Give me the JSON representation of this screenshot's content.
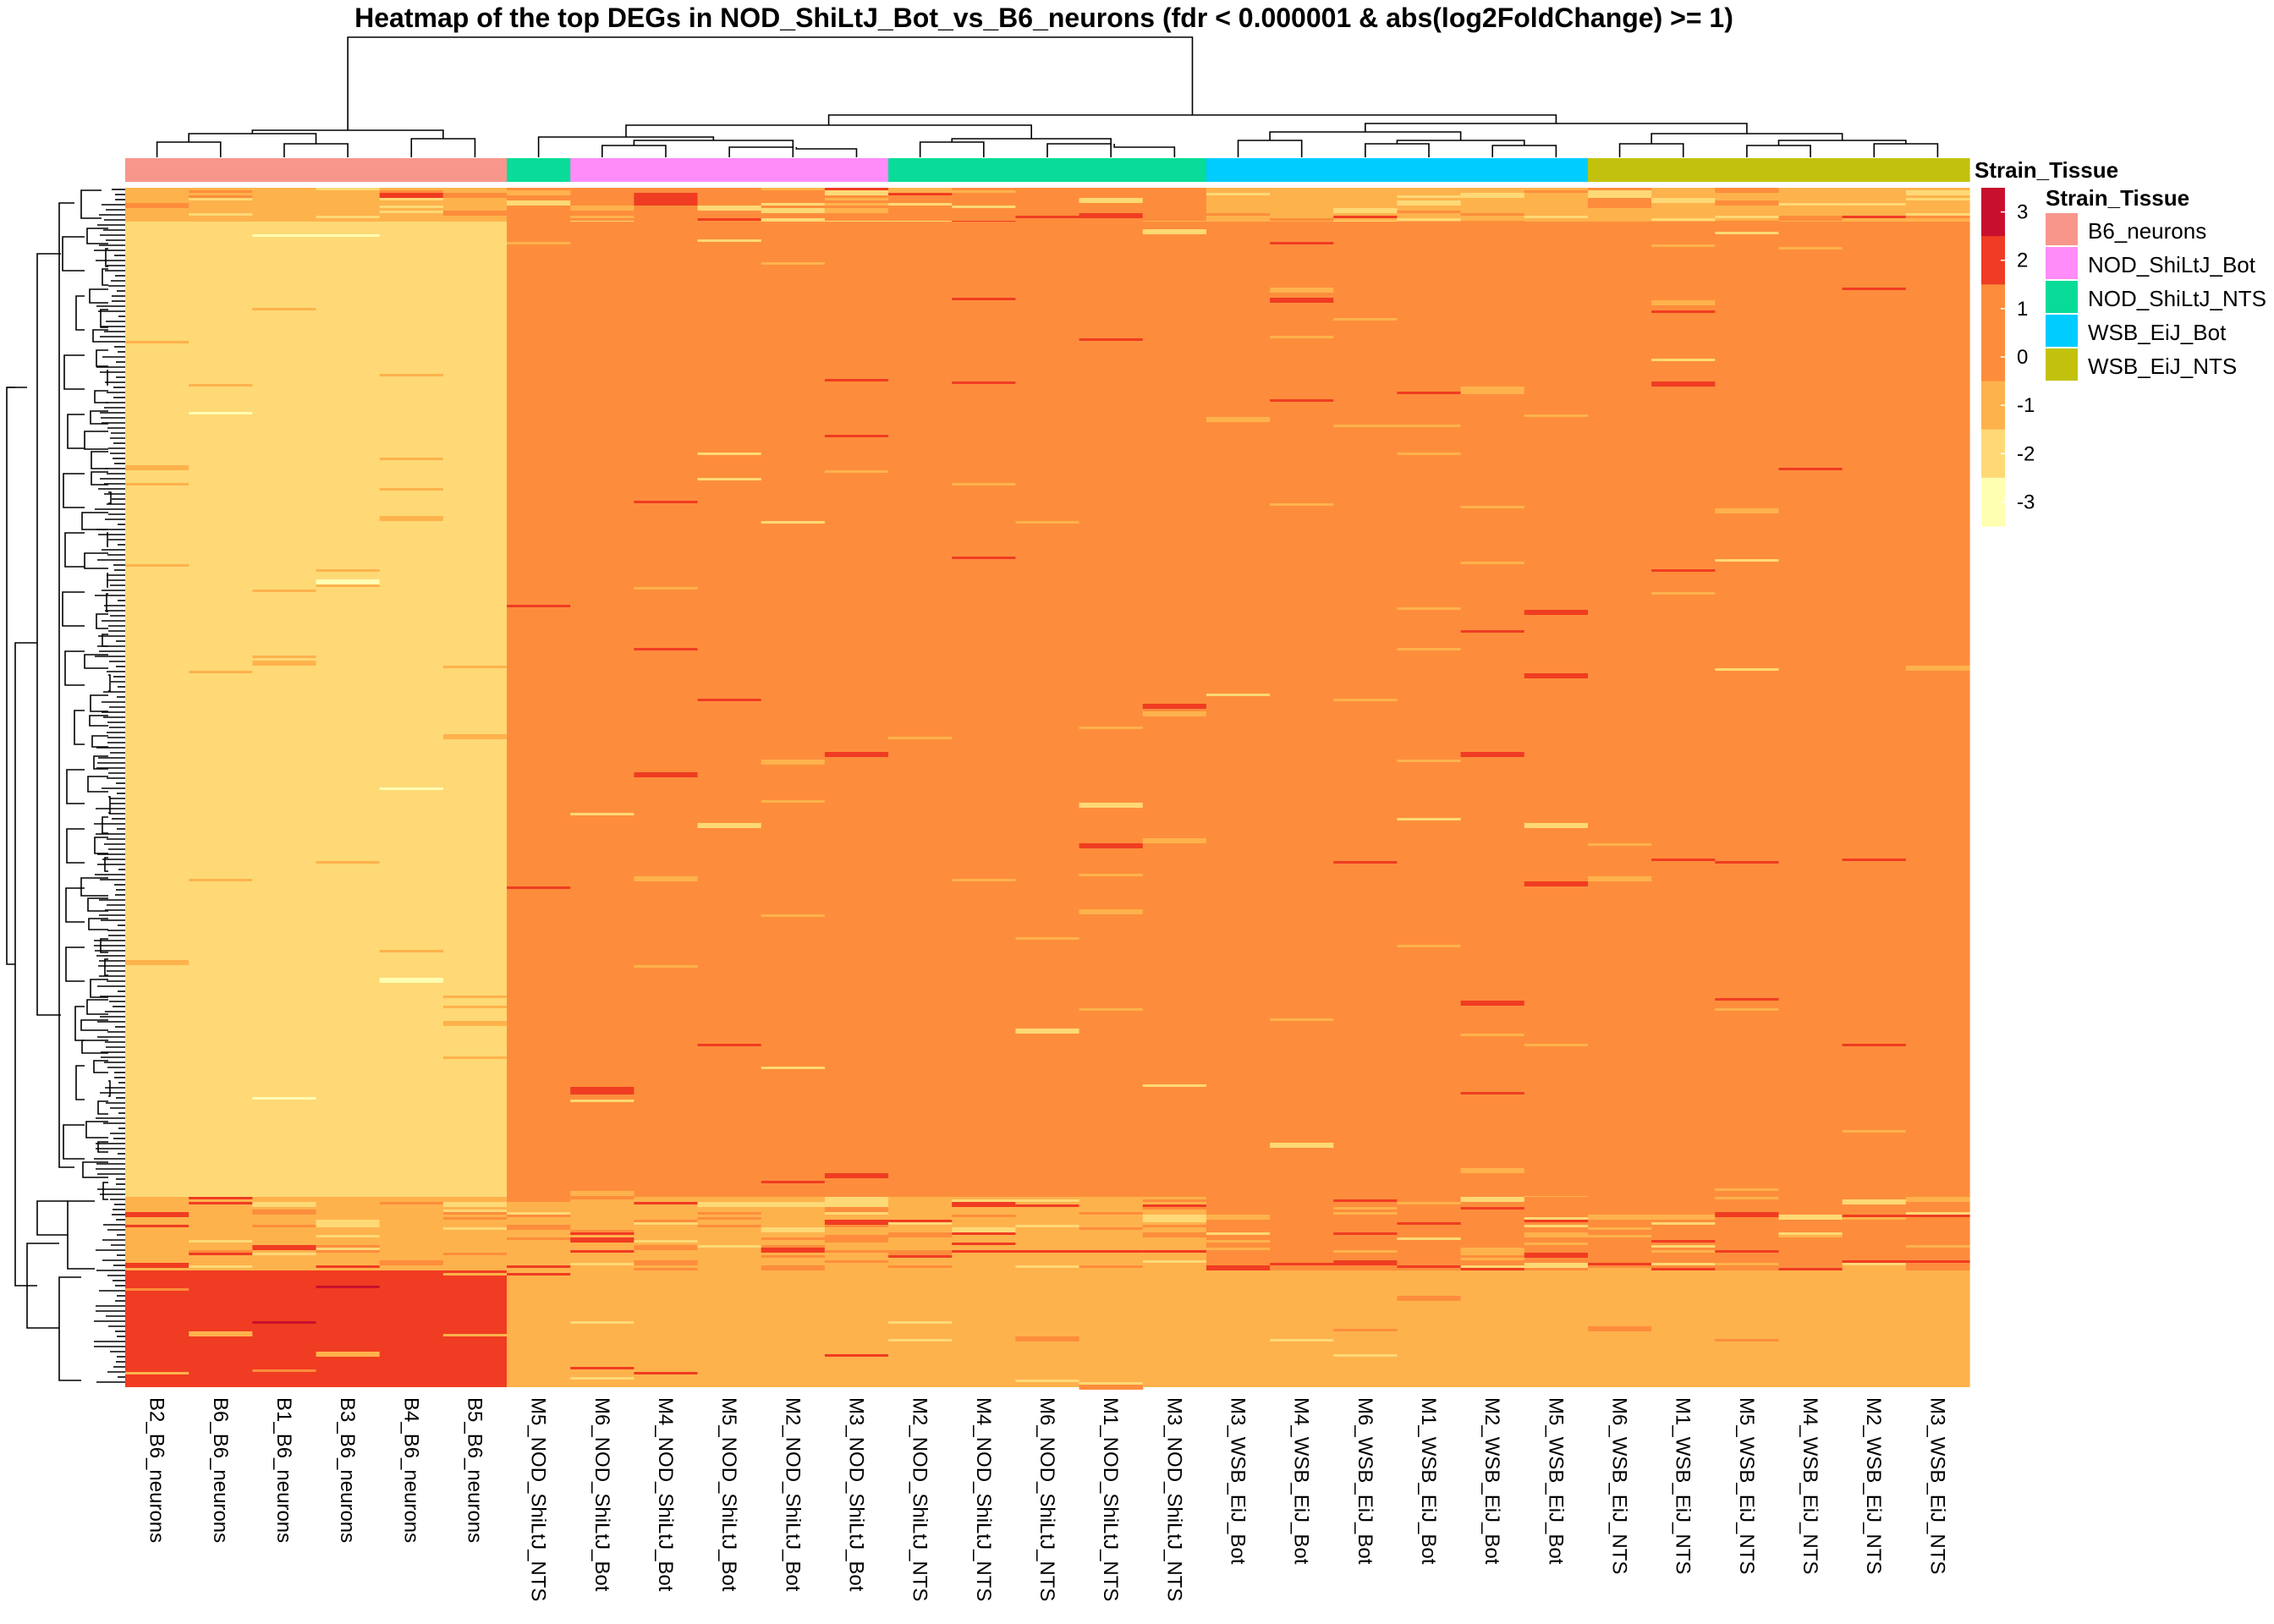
{
  "chart_data": {
    "type": "heatmap",
    "title": "Heatmap of the top DEGs in NOD_ShiLtJ_Bot_vs_B6_neurons (fdr < 0.000001 & abs(log2FoldChange) >= 1)",
    "columns": [
      "B2_B6_neurons",
      "B6_B6_neurons",
      "B1_B6_neurons",
      "B3_B6_neurons",
      "B4_B6_neurons",
      "B5_B6_neurons",
      "M5_NOD_ShiLtJ_NTS",
      "M6_NOD_ShiLtJ_Bot",
      "M4_NOD_ShiLtJ_Bot",
      "M5_NOD_ShiLtJ_Bot",
      "M2_NOD_ShiLtJ_Bot",
      "M3_NOD_ShiLtJ_Bot",
      "M2_NOD_ShiLtJ_NTS",
      "M4_NOD_ShiLtJ_NTS",
      "M6_NOD_ShiLtJ_NTS",
      "M1_NOD_ShiLtJ_NTS",
      "M3_NOD_ShiLtJ_NTS",
      "M3_WSB_EiJ_Bot",
      "M4_WSB_EiJ_Bot",
      "M6_WSB_EiJ_Bot",
      "M1_WSB_EiJ_Bot",
      "M2_WSB_EiJ_Bot",
      "M5_WSB_EiJ_Bot",
      "M6_WSB_EiJ_NTS",
      "M1_WSB_EiJ_NTS",
      "M5_WSB_EiJ_NTS",
      "M4_WSB_EiJ_NTS",
      "M2_WSB_EiJ_NTS",
      "M3_WSB_EiJ_NTS"
    ],
    "column_annotation": {
      "name": "Strain_Tissue",
      "values": [
        "B6_neurons",
        "B6_neurons",
        "B6_neurons",
        "B6_neurons",
        "B6_neurons",
        "B6_neurons",
        "NOD_ShiLtJ_NTS",
        "NOD_ShiLtJ_Bot",
        "NOD_ShiLtJ_Bot",
        "NOD_ShiLtJ_Bot",
        "NOD_ShiLtJ_Bot",
        "NOD_ShiLtJ_Bot",
        "NOD_ShiLtJ_NTS",
        "NOD_ShiLtJ_NTS",
        "NOD_ShiLtJ_NTS",
        "NOD_ShiLtJ_NTS",
        "NOD_ShiLtJ_NTS",
        "WSB_EiJ_Bot",
        "WSB_EiJ_Bot",
        "WSB_EiJ_Bot",
        "WSB_EiJ_Bot",
        "WSB_EiJ_Bot",
        "WSB_EiJ_Bot",
        "WSB_EiJ_NTS",
        "WSB_EiJ_NTS",
        "WSB_EiJ_NTS",
        "WSB_EiJ_NTS",
        "WSB_EiJ_NTS",
        "WSB_EiJ_NTS"
      ],
      "categories": [
        {
          "label": "B6_neurons",
          "color": "#F8968B"
        },
        {
          "label": "NOD_ShiLtJ_Bot",
          "color": "#FF8CF8"
        },
        {
          "label": "NOD_ShiLtJ_NTS",
          "color": "#08DC98"
        },
        {
          "label": "WSB_EiJ_Bot",
          "color": "#00CCFF"
        },
        {
          "label": "WSB_EiJ_NTS",
          "color": "#C2C20E"
        }
      ]
    },
    "color_scale": {
      "ticks": [
        3,
        2,
        1,
        0,
        -1,
        -2,
        -3
      ],
      "bins": [
        {
          "from": 2.5,
          "to": 3.5,
          "color": "#C8102E"
        },
        {
          "from": 1.5,
          "to": 2.5,
          "color": "#F03C22"
        },
        {
          "from": 0.5,
          "to": 1.5,
          "color": "#FD8D3C"
        },
        {
          "from": -0.5,
          "to": 0.5,
          "color": "#FD8D3C"
        },
        {
          "from": -1.5,
          "to": -0.5,
          "color": "#FEB24C"
        },
        {
          "from": -2.5,
          "to": -1.5,
          "color": "#FED976"
        },
        {
          "from": -3.5,
          "to": -2.5,
          "color": "#FFFFB2"
        }
      ]
    },
    "row_blocks": [
      {
        "rows": "top small cluster",
        "values_by_group": {
          "B6_neurons": -1,
          "NOD_ShiLtJ": 1,
          "WSB_EiJ": -1
        }
      },
      {
        "rows": "main cluster",
        "values_by_group": {
          "B6_neurons": -2,
          "NOD_ShiLtJ": 1,
          "WSB_EiJ": 1
        }
      },
      {
        "rows": "lower-middle cluster",
        "values_by_group": {
          "B6_neurons": -1,
          "NOD_ShiLtJ": -1,
          "WSB_EiJ": 1
        }
      },
      {
        "rows": "bottom cluster",
        "values_by_group": {
          "B6_neurons": 2,
          "NOD_ShiLtJ": -1,
          "WSB_EiJ": -1
        }
      }
    ],
    "legend_placement": "right",
    "grid": false
  }
}
